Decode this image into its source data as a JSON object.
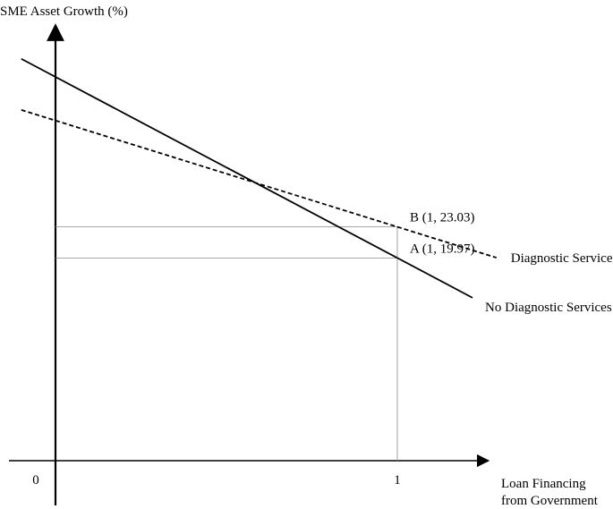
{
  "chart_data": {
    "type": "line",
    "title": "",
    "ylabel": "SME Asset Growth (%)",
    "xlabel_lines": [
      "Loan Financing",
      "from Government"
    ],
    "x_ticks": [
      {
        "value": 0,
        "label": "0"
      },
      {
        "value": 1,
        "label": "1"
      }
    ],
    "grid": false,
    "series": [
      {
        "name": "No Diagnostic Services",
        "style": "solid",
        "points": [
          [
            0,
            37.8
          ],
          [
            1,
            19.97
          ]
        ]
      },
      {
        "name": "Diagnostic Services",
        "style": "dashed",
        "points": [
          [
            0,
            33.5
          ],
          [
            1,
            23.03
          ]
        ]
      }
    ],
    "annotations": [
      {
        "label": "B (1, 23.03)",
        "x": 1,
        "y": 23.03
      },
      {
        "label": "A (1, 19.97)",
        "x": 1,
        "y": 19.97
      }
    ]
  }
}
